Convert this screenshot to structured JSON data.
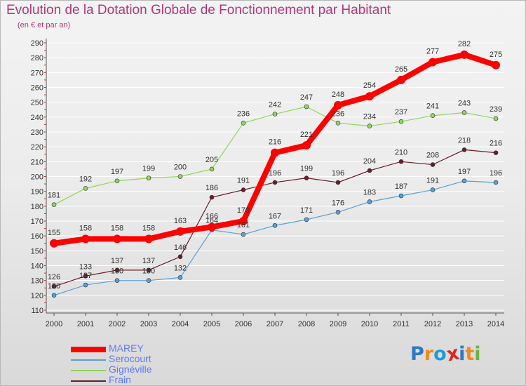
{
  "title": "Evolution de la Dotation Globale de Fonctionnement par Habitant",
  "subtitle": "(en € et par an)",
  "logo": {
    "text": "Proxiti",
    "colors": [
      "#2e78c8",
      "#f08a1c",
      "#1f9bd8",
      "#e0251f",
      "#2e78c8",
      "#f08a1c",
      "#6cb33f"
    ]
  },
  "chart_data": {
    "type": "line",
    "title": "Evolution de la Dotation Globale de Fonctionnement par Habitant",
    "subtitle": "(en € et par an)",
    "xlabel": "",
    "ylabel": "",
    "x": [
      2000,
      2001,
      2002,
      2003,
      2004,
      2005,
      2006,
      2007,
      2008,
      2009,
      2010,
      2011,
      2012,
      2013,
      2014
    ],
    "ylim": [
      110,
      290
    ],
    "yticks": [
      110,
      120,
      130,
      140,
      150,
      160,
      170,
      180,
      190,
      200,
      210,
      220,
      230,
      240,
      250,
      260,
      270,
      280,
      290
    ],
    "grid": "horizontal",
    "legend_position": "bottom-left",
    "series": [
      {
        "name": "Frain",
        "color": "#6b1c28",
        "values": [
          126,
          133,
          137,
          137,
          146,
          186,
          191,
          196,
          199,
          196,
          204,
          210,
          208,
          218,
          216
        ]
      },
      {
        "name": "Serocourt",
        "color": "#5a9fd6",
        "values": [
          120,
          127,
          130,
          130,
          132,
          164,
          161,
          167,
          171,
          176,
          183,
          187,
          191,
          197,
          196
        ]
      },
      {
        "name": "Gignéville",
        "color": "#8fd65c",
        "values": [
          181,
          192,
          197,
          199,
          200,
          205,
          236,
          242,
          247,
          236,
          234,
          237,
          241,
          243,
          239
        ]
      },
      {
        "name": "MAREY",
        "color": "#ff0000",
        "values": [
          155,
          158,
          158,
          158,
          163,
          166,
          170,
          216,
          221,
          248,
          254,
          265,
          277,
          282,
          275
        ]
      }
    ],
    "legend": [
      "MAREY",
      "Serocourt",
      "Gignéville",
      "Frain"
    ]
  }
}
